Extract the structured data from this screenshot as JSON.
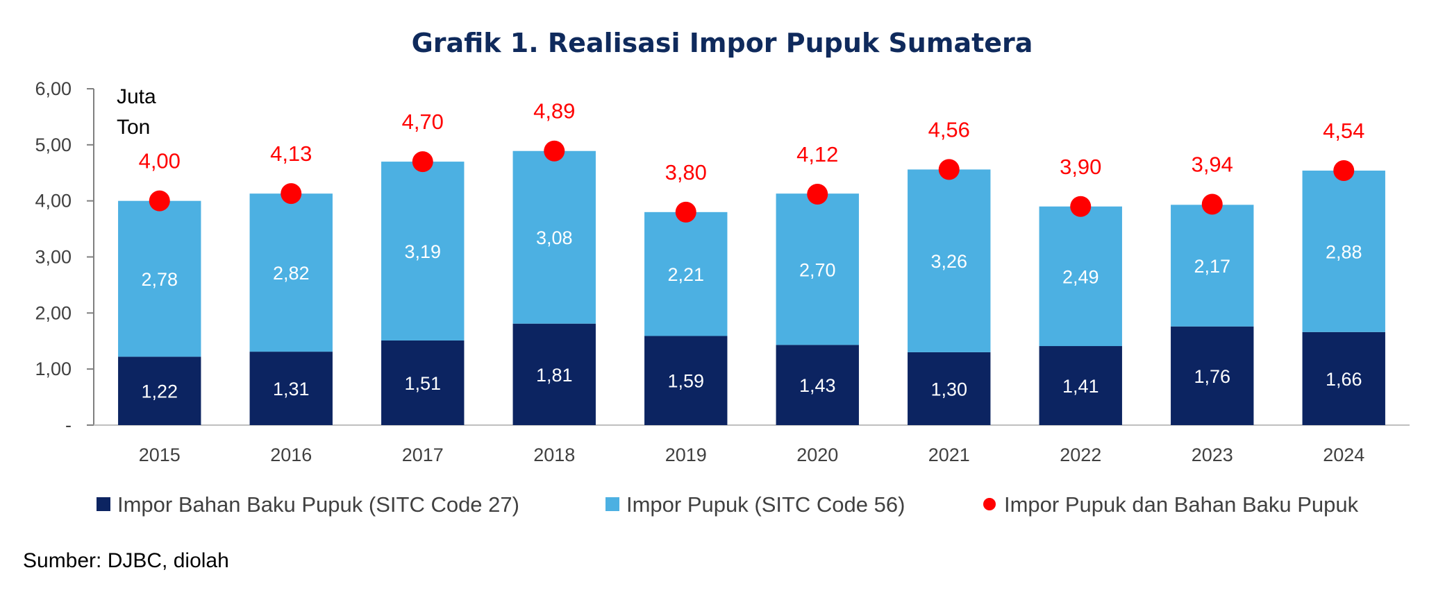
{
  "chart_data": {
    "type": "bar",
    "title": "Grafik 1. Realisasi Impor Pupuk Sumatera",
    "unit_label": [
      "Juta",
      "Ton"
    ],
    "categories": [
      "2015",
      "2016",
      "2017",
      "2018",
      "2019",
      "2020",
      "2021",
      "2022",
      "2023",
      "2024"
    ],
    "ylim": [
      0,
      6
    ],
    "y_ticks": [
      "-",
      "1,00",
      "2,00",
      "3,00",
      "4,00",
      "5,00",
      "6,00"
    ],
    "stacked": true,
    "series": [
      {
        "name": "Impor Bahan Baku Pupuk (SITC Code 27)",
        "kind": "bar",
        "color": "#0c2461",
        "values": [
          1.22,
          1.31,
          1.51,
          1.81,
          1.59,
          1.43,
          1.3,
          1.41,
          1.76,
          1.66
        ],
        "labels": [
          "1,22",
          "1,31",
          "1,51",
          "1,81",
          "1,59",
          "1,43",
          "1,30",
          "1,41",
          "1,76",
          "1,66"
        ]
      },
      {
        "name": "Impor Pupuk (SITC Code 56)",
        "kind": "bar",
        "color": "#4cb0e2",
        "values": [
          2.78,
          2.82,
          3.19,
          3.08,
          2.21,
          2.7,
          3.26,
          2.49,
          2.17,
          2.88
        ],
        "labels": [
          "2,78",
          "2,82",
          "3,19",
          "3,08",
          "2,21",
          "2,70",
          "3,26",
          "2,49",
          "2,17",
          "2,88"
        ]
      },
      {
        "name": "Impor Pupuk dan Bahan Baku Pupuk",
        "kind": "point",
        "color": "#ff0000",
        "values": [
          4.0,
          4.13,
          4.7,
          4.89,
          3.8,
          4.12,
          4.56,
          3.9,
          3.94,
          4.54
        ],
        "labels": [
          "4,00",
          "4,13",
          "4,70",
          "4,89",
          "3,80",
          "4,12",
          "4,56",
          "3,90",
          "3,94",
          "4,54"
        ]
      }
    ],
    "legend_position": "bottom",
    "grid": false,
    "source": "Sumber: DJBC, diolah"
  }
}
